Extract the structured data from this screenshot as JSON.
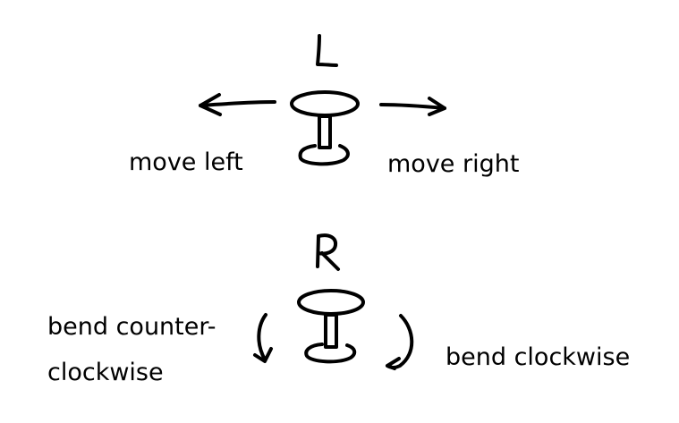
{
  "diagram": {
    "L": {
      "letter": "L",
      "left_label": "move left",
      "right_label": "move right"
    },
    "R": {
      "letter": "R",
      "left_label_line1": "bend counter-",
      "left_label_line2": "clockwise",
      "right_label": "bend clockwise"
    }
  }
}
